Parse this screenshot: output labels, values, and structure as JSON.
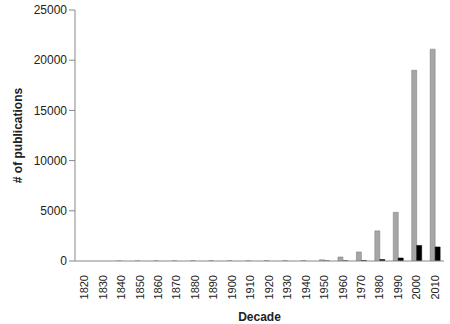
{
  "chart_data": {
    "type": "bar",
    "x_label": "Decade",
    "y_label": "# of publications",
    "categories": [
      "1820",
      "1830",
      "1840",
      "1850",
      "1860",
      "1870",
      "1880",
      "1890",
      "1900",
      "1910",
      "1920",
      "1930",
      "1940",
      "1950",
      "1960",
      "1970",
      "1980",
      "1990",
      "2000",
      "2010"
    ],
    "series": [
      {
        "color": "#a6a6a6",
        "values": [
          0,
          0,
          5,
          5,
          10,
          10,
          20,
          20,
          20,
          20,
          30,
          30,
          40,
          120,
          400,
          900,
          3000,
          4850,
          19000,
          21100
        ]
      },
      {
        "color": "#000000",
        "values": [
          0,
          0,
          0,
          0,
          0,
          0,
          0,
          0,
          0,
          0,
          0,
          0,
          0,
          5,
          20,
          50,
          150,
          300,
          1550,
          1400
        ]
      }
    ],
    "ylim": [
      0,
      25000
    ],
    "yticks": [
      0,
      5000,
      10000,
      15000,
      20000,
      25000
    ],
    "grid": false
  }
}
